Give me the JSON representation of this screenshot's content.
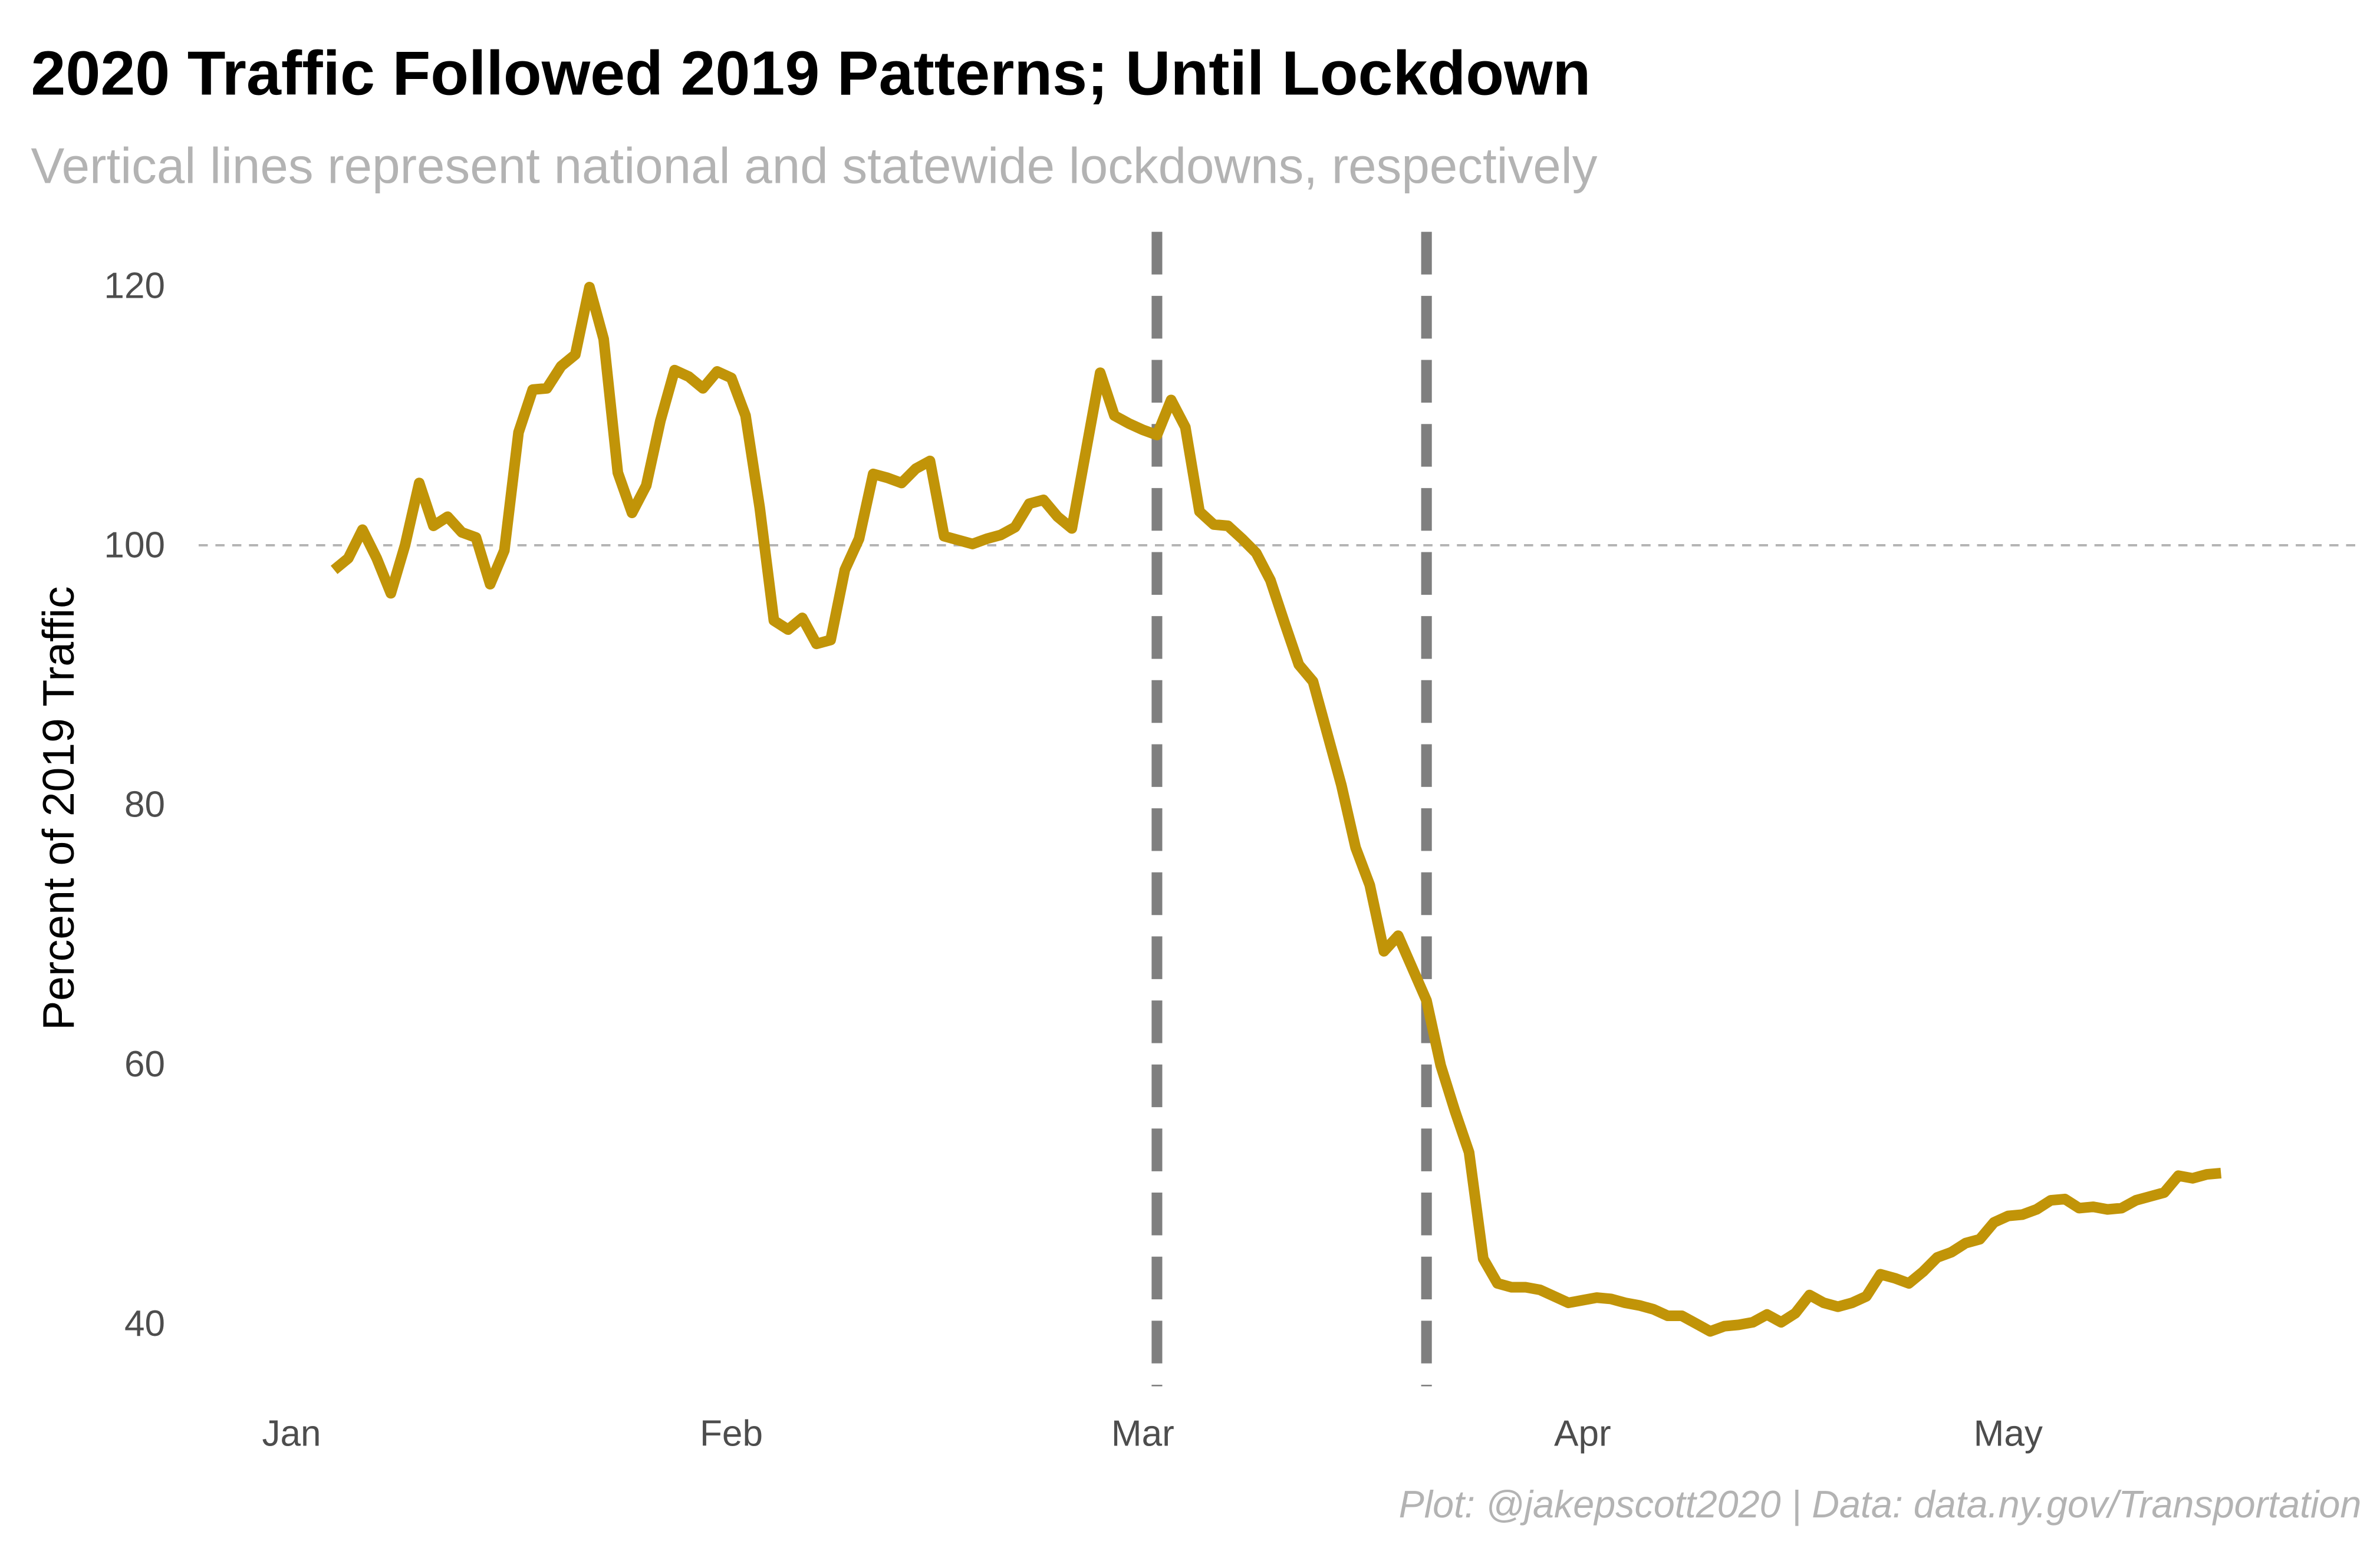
{
  "chart_data": {
    "type": "line",
    "title": "2020 Traffic Followed 2019 Patterns; Until Lockdown",
    "subtitle": "Vertical lines represent national and statewide lockdowns, respectively",
    "caption": "Plot: @jakepscott2020 | Data: data.ny.gov/Transportation",
    "y_label": "Percent of 2019 Traffic",
    "color": "#c19408",
    "x": [
      4,
      5,
      6,
      7,
      8,
      9,
      10,
      11,
      12,
      13,
      14,
      15,
      16,
      17,
      18,
      19,
      20,
      21,
      22,
      23,
      24,
      25,
      26,
      27,
      28,
      29,
      30,
      31,
      32,
      33,
      34,
      35,
      36,
      37,
      38,
      39,
      40,
      41,
      42,
      43,
      44,
      45,
      46,
      47,
      48,
      49,
      50,
      51,
      52,
      53,
      54,
      55,
      56,
      57,
      58,
      59,
      60,
      61,
      62,
      63,
      64,
      65,
      66,
      67,
      68,
      69,
      70,
      71,
      72,
      73,
      74,
      75,
      76,
      77,
      78,
      79,
      80,
      81,
      82,
      83,
      84,
      85,
      86,
      87,
      88,
      89,
      90,
      91,
      92,
      93,
      94,
      95,
      96,
      97,
      98,
      99,
      100,
      101,
      102,
      103,
      104,
      105,
      106,
      107,
      108,
      109,
      110,
      111,
      112,
      113,
      114,
      115,
      116,
      117,
      118,
      119,
      120,
      121,
      122,
      123,
      124,
      125,
      126,
      127,
      128,
      129,
      130,
      131,
      132,
      133,
      134,
      135,
      136,
      137
    ],
    "values": [
      98.1,
      99,
      101.2,
      99,
      96.3,
      100,
      104.8,
      101.5,
      102.2,
      101,
      100.6,
      97,
      99.6,
      108.7,
      112,
      112.1,
      113.8,
      114.7,
      119.9,
      115.9,
      105.6,
      102.5,
      104.6,
      109.6,
      113.5,
      113,
      112.1,
      113.4,
      112.9,
      110,
      102.9,
      94.2,
      93.5,
      94.4,
      92.4,
      92.7,
      98.1,
      100.5,
      105.5,
      105.2,
      104.8,
      105.9,
      106.5,
      100.7,
      100.4,
      100.1,
      100.5,
      100.8,
      101.4,
      103.2,
      103.5,
      102.2,
      101.3,
      107.3,
      113.3,
      110,
      109.4,
      108.9,
      108.5,
      111.2,
      109.1,
      102.6,
      101.6,
      101.5,
      100.5,
      99.4,
      97.3,
      94,
      90.8,
      89.5,
      85.5,
      81.5,
      76.7,
      73.8,
      68.7,
      69.9,
      67.4,
      64.9,
      59.9,
      56.4,
      53.2,
      45,
      43.1,
      42.8,
      42.8,
      42.6,
      42.1,
      41.6,
      41.8,
      42,
      41.9,
      41.6,
      41.4,
      41.1,
      40.6,
      40.6,
      40,
      39.4,
      39.8,
      39.9,
      40.1,
      40.7,
      40.1,
      40.8,
      42.2,
      41.6,
      41.3,
      41.6,
      42.1,
      43.8,
      43.5,
      43.1,
      44,
      45.1,
      45.5,
      46.2,
      46.5,
      47.8,
      48.3,
      48.4,
      48.8,
      49.5,
      49.6,
      48.9,
      49,
      48.8,
      48.9,
      49.5,
      49.8,
      50.1,
      51.4,
      51.2,
      51.5,
      51.6
    ],
    "xlim": [
      -2,
      147
    ],
    "xticks": [
      {
        "value": 1,
        "label": "Jan"
      },
      {
        "value": 32,
        "label": "Feb"
      },
      {
        "value": 61,
        "label": "Mar"
      },
      {
        "value": 92,
        "label": "Apr"
      },
      {
        "value": 122,
        "label": "May"
      }
    ],
    "ylim": [
      35.4,
      124.4
    ],
    "yticks": [
      40,
      60,
      80,
      100,
      120
    ],
    "grid": false,
    "hline": 100,
    "vlines": [
      62,
      81
    ]
  }
}
